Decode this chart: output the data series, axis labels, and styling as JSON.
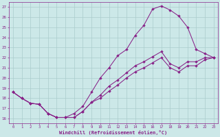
{
  "xlabel": "Windchill (Refroidissement éolien,°C)",
  "xlim": [
    -0.5,
    23.5
  ],
  "ylim": [
    15.5,
    27.5
  ],
  "xticks": [
    0,
    1,
    2,
    3,
    4,
    5,
    6,
    7,
    8,
    9,
    10,
    11,
    12,
    13,
    14,
    15,
    16,
    17,
    18,
    19,
    20,
    21,
    22,
    23
  ],
  "yticks": [
    16,
    17,
    18,
    19,
    20,
    21,
    22,
    23,
    24,
    25,
    26,
    27
  ],
  "bg_color": "#cce8e8",
  "grid_color": "#aacccc",
  "line_color": "#882288",
  "curve_top_x": [
    0,
    1,
    2,
    3,
    4,
    5,
    6,
    7,
    8,
    9,
    10,
    11,
    12,
    13,
    14,
    15,
    16,
    17,
    18,
    19,
    20,
    21,
    22,
    23
  ],
  "curve_top_y": [
    18.6,
    18.0,
    17.5,
    17.4,
    16.5,
    16.1,
    16.1,
    16.5,
    17.2,
    18.6,
    20.0,
    21.0,
    22.2,
    22.8,
    24.2,
    25.2,
    26.8,
    27.1,
    26.7,
    26.1,
    25.0,
    22.8,
    22.4,
    22.0
  ],
  "curve_mid_x": [
    0,
    1,
    2,
    3,
    4,
    5,
    6,
    7,
    8,
    9,
    10,
    11,
    12,
    13,
    14,
    15,
    16,
    17,
    18,
    19,
    20,
    21,
    22,
    23
  ],
  "curve_mid_y": [
    18.6,
    18.0,
    17.5,
    17.4,
    16.5,
    16.1,
    16.1,
    16.1,
    16.7,
    17.6,
    18.3,
    19.2,
    19.8,
    20.5,
    21.2,
    21.6,
    22.1,
    22.6,
    21.4,
    21.0,
    21.6,
    21.6,
    22.0,
    22.0
  ],
  "curve_low_x": [
    0,
    1,
    2,
    3,
    4,
    5,
    6,
    7,
    8,
    9,
    10,
    11,
    12,
    13,
    14,
    15,
    16,
    17,
    18,
    19,
    20,
    21,
    22,
    23
  ],
  "curve_low_y": [
    18.6,
    18.0,
    17.5,
    17.4,
    16.5,
    16.1,
    16.1,
    16.1,
    16.7,
    17.6,
    18.0,
    18.7,
    19.3,
    20.0,
    20.6,
    21.0,
    21.5,
    22.0,
    21.0,
    20.6,
    21.2,
    21.2,
    21.8,
    22.0
  ],
  "marker": "D",
  "markersize": 2.0,
  "linewidth": 0.75
}
